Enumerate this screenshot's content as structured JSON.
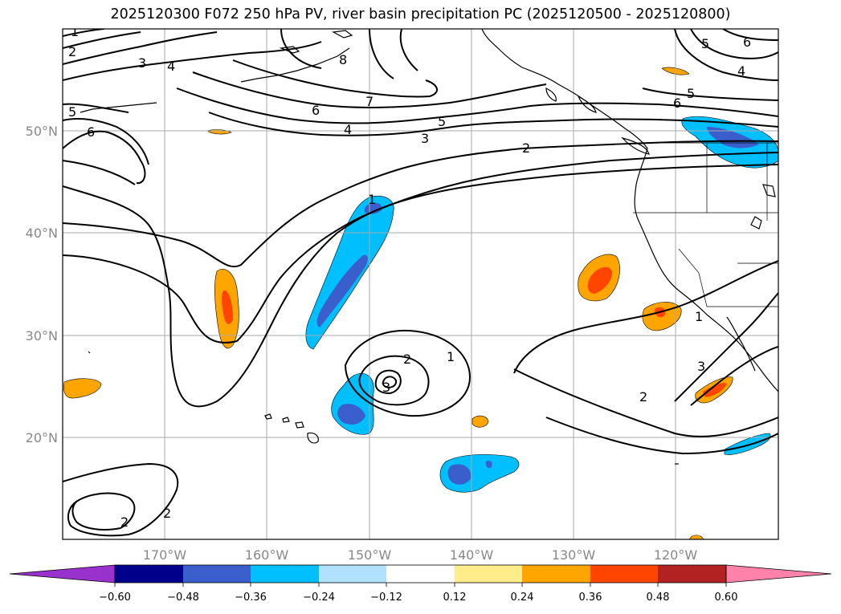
{
  "title": "2025120300 F072 250 hPa PV, river basin precipitation PC (2025120500 - 2025120800)",
  "map": {
    "projection": "PlateCarree",
    "lon_range": [
      -180,
      -110
    ],
    "lat_range": [
      10,
      60
    ],
    "lat_labels": [
      "20°N",
      "30°N",
      "40°N",
      "50°N"
    ],
    "lon_labels": [
      "170°W",
      "160°W",
      "150°W",
      "140°W",
      "130°W",
      "120°W"
    ],
    "gridlines": true,
    "gridline_color": "#aaaaaa",
    "pv_contour_color": "#000000",
    "pv_contour_levels": [
      "1",
      "2",
      "3",
      "4",
      "5",
      "6",
      "7",
      "8"
    ],
    "contour_labels": [
      "1",
      "2",
      "3",
      "4",
      "5",
      "6",
      "5",
      "6",
      "4",
      "3",
      "2",
      "7",
      "6",
      "5",
      "4",
      "6",
      "5",
      "1",
      "2",
      "1",
      "2",
      "3",
      "2",
      "3",
      "1",
      "2",
      "8"
    ]
  },
  "colorbar": {
    "extend": "both",
    "ticks": [
      "−0.60",
      "−0.48",
      "−0.36",
      "−0.24",
      "−0.12",
      "0.12",
      "0.24",
      "0.36",
      "0.48",
      "0.60"
    ],
    "colors": [
      "#9932cc",
      "#00008b",
      "#3a5fcd",
      "#00bfff",
      "#b0e2ff",
      "#ffffff",
      "#ffec8b",
      "#ffa500",
      "#ff4500",
      "#b22222",
      "#ff82ab"
    ]
  }
}
